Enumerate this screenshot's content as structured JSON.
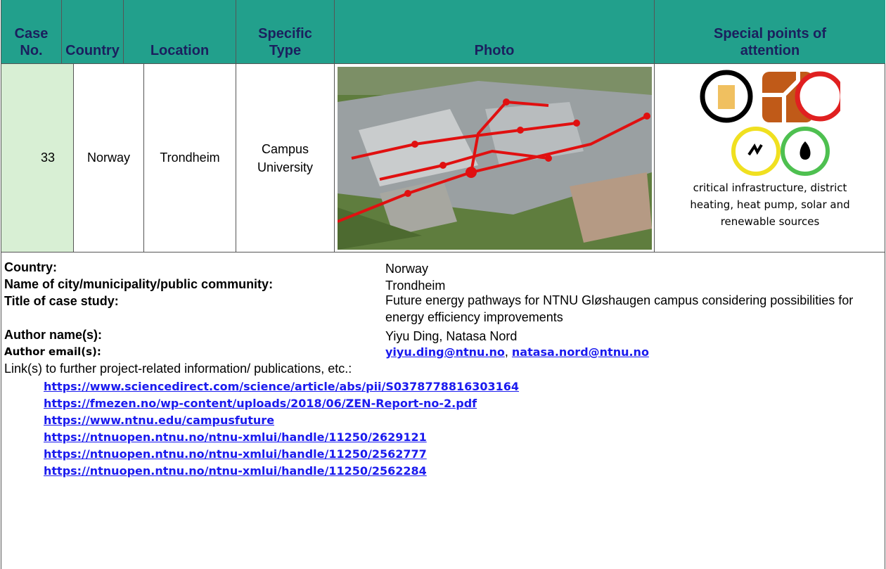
{
  "table": {
    "headers": [
      "Case No.",
      "Country",
      "Location",
      "Specific Type",
      "Photo",
      "Special points of attention"
    ],
    "row": [
      "33",
      "Norway",
      "Trondheim",
      "Campus University"
    ],
    "special_points_caption": "critical infrastructure, district heating, heat pump, solar and renewable sources"
  },
  "details": {
    "rows": [
      [
        "Country:",
        "Norway"
      ],
      [
        "Name of city/municipality/public community:",
        "Trondheim"
      ],
      [
        "Title of case study:",
        "Future energy pathways for NTNU Gløshaugen campus considering possibilities for energy efficiency improvements"
      ],
      [
        "Author name(s):",
        "Yiyu Ding, Natasa Nord"
      ]
    ],
    "email_label": "Author email(s):",
    "emails": [
      "yiyu.ding@ntnu.no",
      "natasa.nord@ntnu.no"
    ],
    "email_separator": ", ",
    "links_label": "Link(s) to further project-related information/ publications, etc.:",
    "links": [
      "https://www.sciencedirect.com/science/article/abs/pii/S0378778816303164",
      "https://fmezen.no/wp-content/uploads/2018/06/ZEN-Report-no-2.pdf",
      "https://www.ntnu.edu/campusfuture",
      "https://ntnuopen.ntnu.no/ntnu-xmlui/handle/11250/2629121",
      "https://ntnuopen.ntnu.no/ntnu-xmlui/handle/11250/2562777",
      "https://ntnuopen.ntnu.no/ntnu-xmlui/handle/11250/2562284"
    ]
  }
}
